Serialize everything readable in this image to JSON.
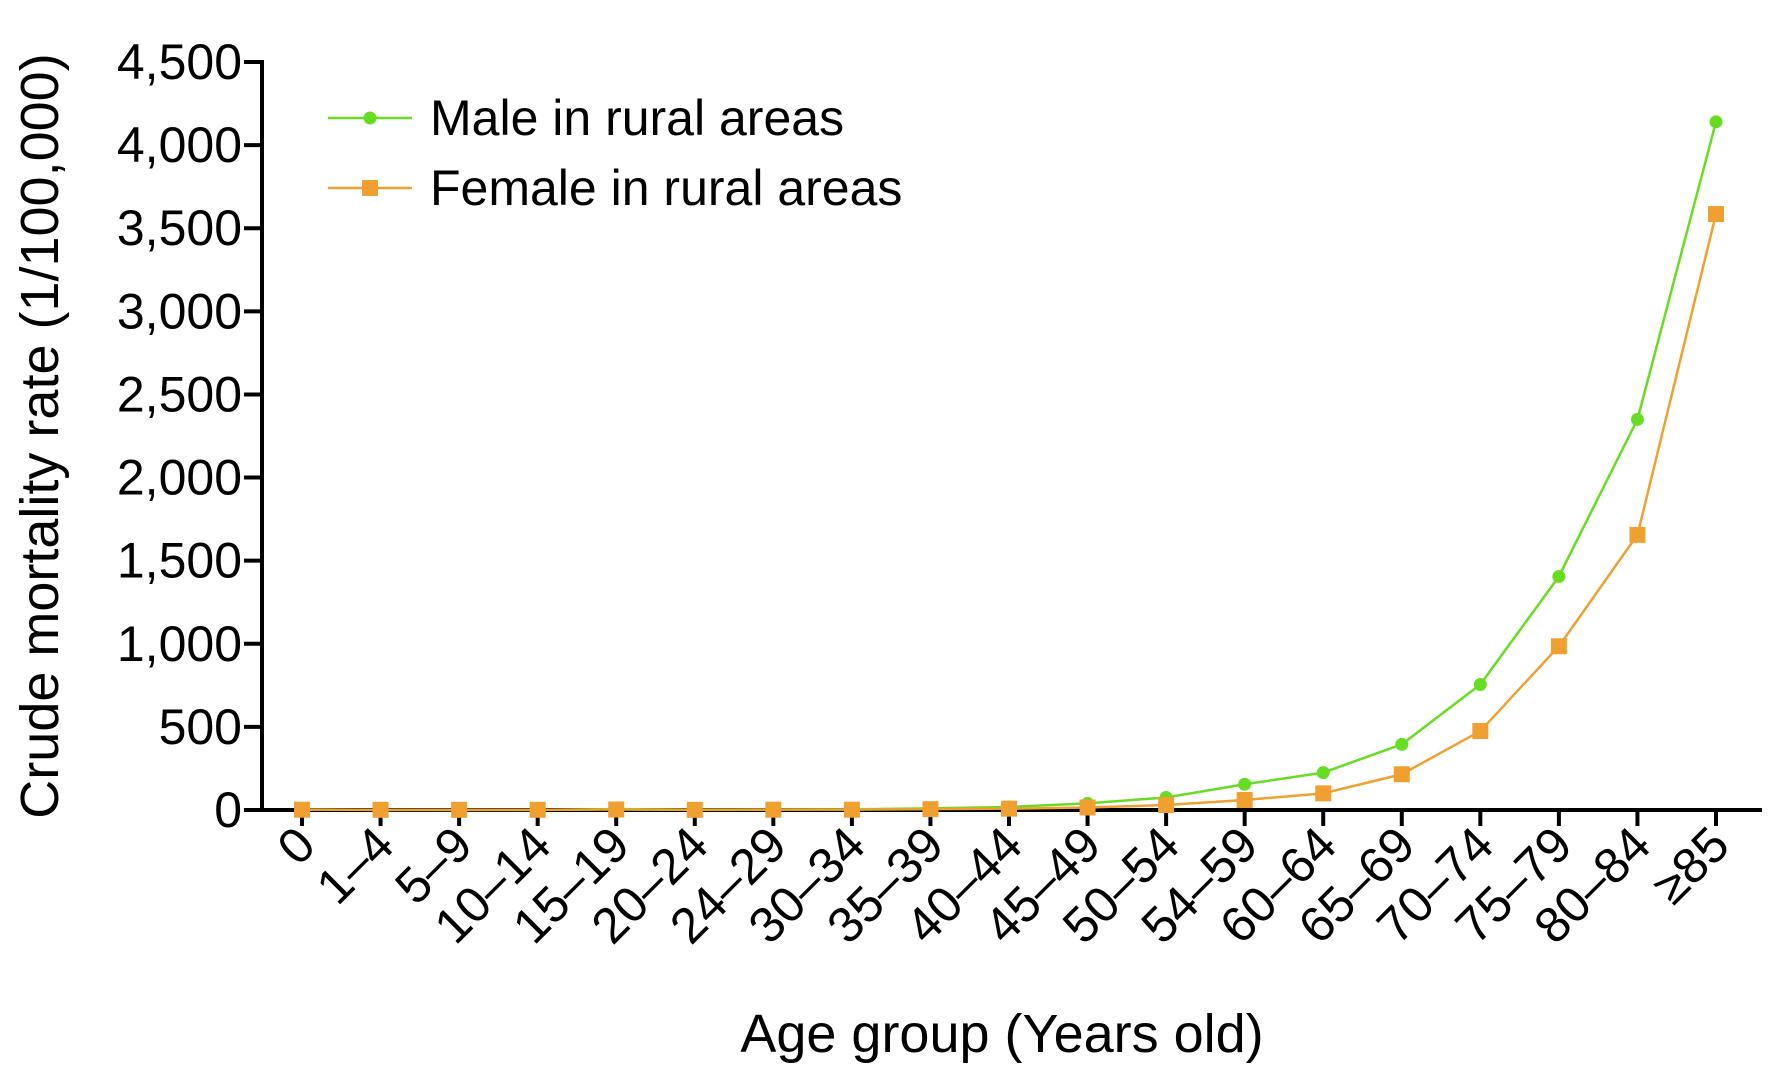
{
  "chart_data": {
    "type": "line",
    "title": "",
    "xlabel": "Age group (Years old)",
    "ylabel": "Crude mortality rate (1/100,000)",
    "categories": [
      "0",
      "1–4",
      "5–9",
      "10–14",
      "15–19",
      "20–24",
      "24–29",
      "30–34",
      "35–39",
      "40–44",
      "45–49",
      "50–54",
      "54–59",
      "60–64",
      "65–69",
      "70–74",
      "75–79",
      "80–84",
      "≥85"
    ],
    "ylim": [
      0,
      4500
    ],
    "yticks": [
      0,
      500,
      1000,
      1500,
      2000,
      2500,
      3000,
      3500,
      4000,
      4500
    ],
    "ytick_labels": [
      "0",
      "500",
      "1,000",
      "1,500",
      "2,000",
      "2,500",
      "3,000",
      "3,500",
      "4,000",
      "4,500"
    ],
    "grid": false,
    "legend_position": "top-left",
    "series": [
      {
        "name": "Male in rural areas",
        "marker": "circle",
        "color": "#66dd22",
        "values": [
          3,
          1,
          1,
          1,
          5,
          2,
          3,
          4,
          10,
          18,
          40,
          75,
          155,
          225,
          395,
          755,
          1405,
          2350,
          4140
        ]
      },
      {
        "name": "Female in rural areas",
        "marker": "square",
        "color": "#f0a030",
        "values": [
          2,
          1,
          1,
          1,
          3,
          1,
          2,
          2,
          5,
          8,
          15,
          30,
          60,
          100,
          215,
          475,
          985,
          1655,
          3585
        ]
      }
    ]
  }
}
